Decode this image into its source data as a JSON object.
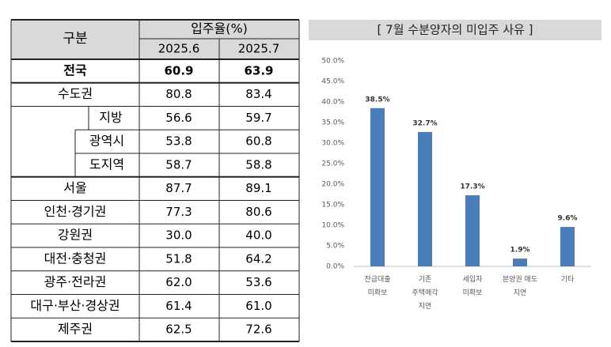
{
  "table": {
    "header": {
      "label": "구분",
      "group": "입주율(%)",
      "columns": [
        "2025.6",
        "2025.7"
      ]
    },
    "rows": [
      [
        "전국",
        "60.9",
        "63.9"
      ],
      [
        "수도권",
        "80.8",
        "83.4"
      ],
      [
        "지방",
        "56.6",
        "59.7"
      ],
      [
        "광역시",
        "53.8",
        "60.8"
      ],
      [
        "도지역",
        "58.7",
        "58.8"
      ],
      [
        "서울",
        "87.7",
        "89.1"
      ],
      [
        "인천·경기권",
        "77.3",
        "80.6"
      ],
      [
        "강원권",
        "30.0",
        "40.0"
      ],
      [
        "대전·충청권",
        "51.8",
        "64.2"
      ],
      [
        "광주·전라권",
        "62.0",
        "53.6"
      ],
      [
        "대구·부산·경상권",
        "61.4",
        "61.0"
      ],
      [
        "제주권",
        "62.5",
        "72.6"
      ]
    ]
  },
  "chart_data": {
    "type": "bar",
    "title": "[ 7월 수분양자의 미입주 사유 ]",
    "categories": [
      "잔금대출\n미확보",
      "기존\n주택매각\n지연",
      "세입자\n미확보",
      "분양권 매도\n지연",
      "기타"
    ],
    "values": [
      38.5,
      32.7,
      17.3,
      1.9,
      9.6
    ],
    "value_labels": [
      "38.5%",
      "32.7%",
      "17.3%",
      "1.9%",
      "9.6%"
    ],
    "color": "#4a7ebb",
    "ylim": [
      0,
      50
    ],
    "yticks": [
      {
        "value": 0,
        "label": "0.0%"
      },
      {
        "value": 5,
        "label": "5.0%"
      },
      {
        "value": 10,
        "label": "10.0%"
      },
      {
        "value": 15,
        "label": "15.0%"
      },
      {
        "value": 20,
        "label": "20.0%"
      },
      {
        "value": 25,
        "label": "25.0%"
      },
      {
        "value": 30,
        "label": "30.0%"
      },
      {
        "value": 35,
        "label": "35.0%"
      },
      {
        "value": 40,
        "label": "40.0%"
      },
      {
        "value": 45,
        "label": "45.0%"
      },
      {
        "value": 50,
        "label": "50.0%"
      }
    ]
  }
}
